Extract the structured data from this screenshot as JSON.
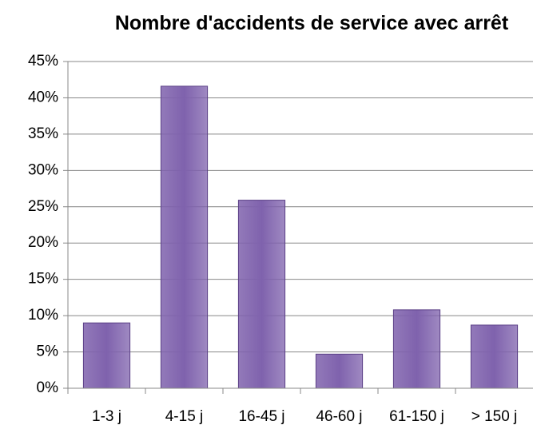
{
  "chart_data": {
    "type": "bar",
    "title": "Nombre d'accidents de service avec arrêt",
    "categories": [
      "1-3 j",
      "4-15 j",
      "16-45 j",
      "46-60 j",
      "61-150 j",
      "> 150 j"
    ],
    "values": [
      9.0,
      41.6,
      25.9,
      4.7,
      10.8,
      8.7
    ],
    "color": "#7f62ad",
    "ylim": [
      0,
      45
    ],
    "yticks": [
      {
        "value": 0,
        "label": "0%"
      },
      {
        "value": 5,
        "label": "5%"
      },
      {
        "value": 10,
        "label": "10%"
      },
      {
        "value": 15,
        "label": "15%"
      },
      {
        "value": 20,
        "label": "20%"
      },
      {
        "value": 25,
        "label": "25%"
      },
      {
        "value": 30,
        "label": "30%"
      },
      {
        "value": 35,
        "label": "35%"
      },
      {
        "value": 40,
        "label": "40%"
      },
      {
        "value": 45,
        "label": "45%"
      }
    ],
    "grid": true
  }
}
